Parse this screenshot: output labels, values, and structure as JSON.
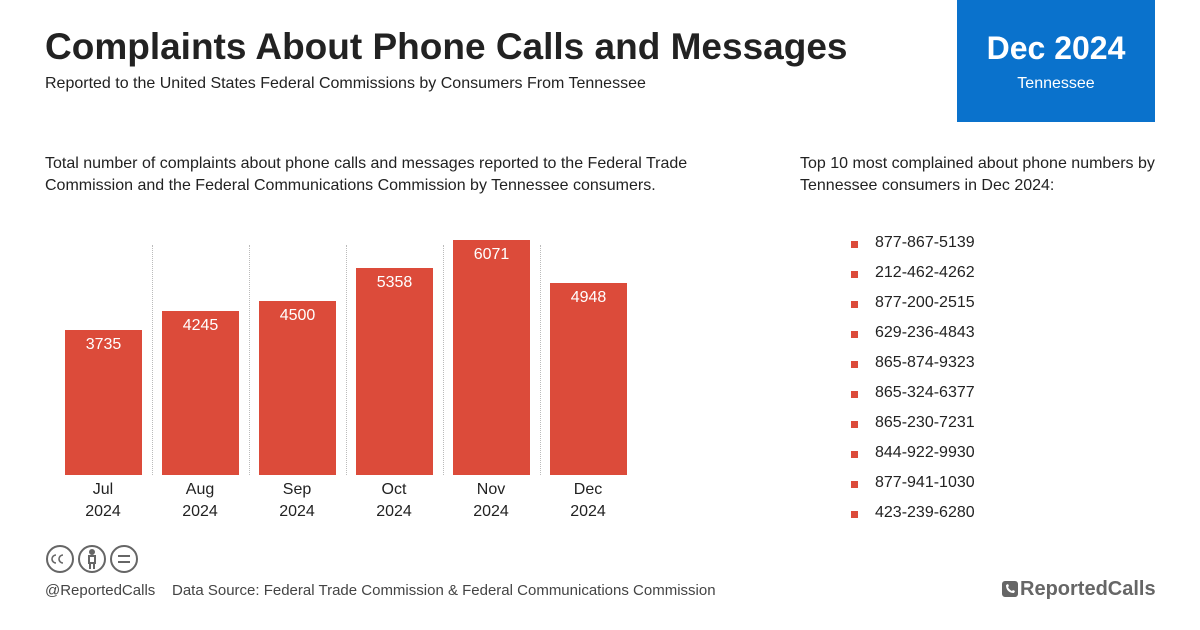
{
  "header": {
    "title": "Complaints About Phone Calls and Messages",
    "subtitle": "Reported to the United States Federal Commissions by Consumers From Tennessee",
    "badge_period": "Dec 2024",
    "badge_state": "Tennessee"
  },
  "chart_data": {
    "type": "bar",
    "description": "Total number of complaints about phone calls and messages reported to the Federal Trade Commission and the Federal Communications Commission by Tennessee consumers.",
    "categories": [
      "Jul 2024",
      "Aug 2024",
      "Sep 2024",
      "Oct 2024",
      "Nov 2024",
      "Dec 2024"
    ],
    "values": [
      3735,
      4245,
      4500,
      5358,
      6071,
      4948
    ],
    "color": "#dc4b3a"
  },
  "top_numbers": {
    "heading": "Top 10 most complained about phone numbers by Tennessee consumers in Dec 2024:",
    "items": [
      "877-867-5139",
      "212-462-4262",
      "877-200-2515",
      "629-236-4843",
      "865-874-9323",
      "865-324-6377",
      "865-230-7231",
      "844-922-9930",
      "877-941-1030",
      "423-239-6280"
    ]
  },
  "footer": {
    "handle": "@ReportedCalls",
    "source": "Data Source: Federal Trade Commission & Federal Communications Commission",
    "brand": "ReportedCalls"
  }
}
